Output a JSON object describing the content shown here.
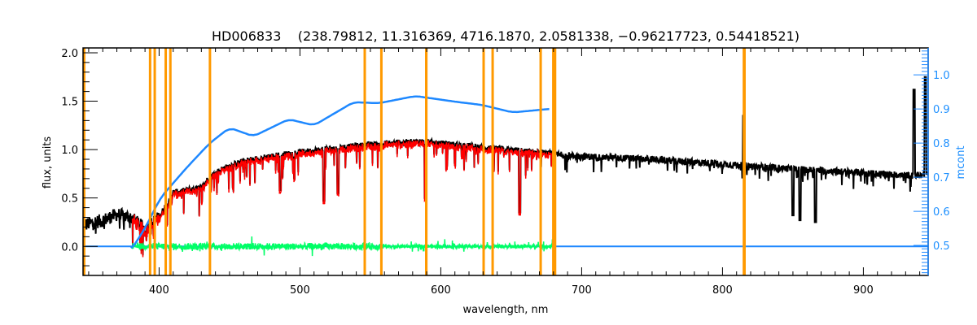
{
  "chart_data": {
    "type": "line",
    "title": "HD006833    (238.79812, 11.316369, 4716.1870, 2.0581338, −0.96217723, 0.54418521)",
    "xlabel": "wavelength, nm",
    "ylabel": "flux, units",
    "y2label": "mcont",
    "xlim": [
      346,
      946
    ],
    "ylim": [
      -0.3,
      2.05
    ],
    "y2lim": [
      0.412,
      1.079
    ],
    "xticks": [
      "400",
      "500",
      "600",
      "700",
      "800",
      "900"
    ],
    "yticks": [
      "0.0",
      "0.5",
      "1.0",
      "1.5",
      "2.0"
    ],
    "y2ticks": [
      "0.5",
      "0.6",
      "0.7",
      "0.8",
      "0.9",
      "1.0"
    ],
    "grid": false,
    "colors": {
      "observed": "#000000",
      "model": "#ff0000",
      "residual": "#00ff66",
      "mcont": "#1e88ff",
      "masks": "#ff9900"
    },
    "series": [
      {
        "name": "observed flux",
        "range": [
          346,
          946
        ],
        "continuum": [
          [
            346,
            0.22
          ],
          [
            360,
            0.27
          ],
          [
            370,
            0.33
          ],
          [
            380,
            0.3
          ],
          [
            390,
            0.18
          ],
          [
            400,
            0.3
          ],
          [
            410,
            0.55
          ],
          [
            420,
            0.58
          ],
          [
            430,
            0.6
          ],
          [
            436,
            0.72
          ],
          [
            445,
            0.8
          ],
          [
            460,
            0.88
          ],
          [
            480,
            0.93
          ],
          [
            500,
            0.97
          ],
          [
            530,
            1.02
          ],
          [
            560,
            1.06
          ],
          [
            585,
            1.08
          ],
          [
            600,
            1.06
          ],
          [
            630,
            1.02
          ],
          [
            660,
            0.98
          ],
          [
            680,
            0.95
          ],
          [
            700,
            0.93
          ],
          [
            750,
            0.9
          ],
          [
            800,
            0.85
          ],
          [
            850,
            0.8
          ],
          [
            900,
            0.76
          ],
          [
            935,
            0.73
          ],
          [
            946,
            0.75
          ]
        ],
        "features": [
          [
            486,
            0.58
          ],
          [
            517,
            0.47
          ],
          [
            527,
            0.55
          ],
          [
            589,
            0.5
          ],
          [
            656,
            0.35
          ],
          [
            815,
            1.35
          ],
          [
            850,
            0.32
          ],
          [
            855,
            0.27
          ],
          [
            866,
            0.25
          ],
          [
            936,
            1.62
          ],
          [
            944,
            1.75
          ]
        ]
      },
      {
        "name": "model flux",
        "range": [
          381,
          680
        ]
      },
      {
        "name": "residual",
        "range": [
          381,
          680
        ]
      },
      {
        "name": "mcont",
        "axis": "right",
        "points": [
          [
            380,
            0.486
          ],
          [
            390,
            0.55
          ],
          [
            401,
            0.64
          ],
          [
            420,
            0.73
          ],
          [
            436,
            0.8
          ],
          [
            450,
            0.845
          ],
          [
            467,
            0.82
          ],
          [
            492,
            0.87
          ],
          [
            510,
            0.852
          ],
          [
            538,
            0.92
          ],
          [
            556,
            0.917
          ],
          [
            582,
            0.938
          ],
          [
            611,
            0.921
          ],
          [
            629,
            0.912
          ],
          [
            651,
            0.89
          ],
          [
            677,
            0.9
          ]
        ]
      }
    ],
    "mask_lines": [
      346.8,
      393.6,
      396.9,
      404.7,
      408.0,
      436.1,
      546.0,
      557.8,
      589.7,
      630.4,
      636.8,
      670.9
    ],
    "mask_bands": [
      [
        588.8,
        590.2
      ],
      [
        679.0,
        682.0
      ],
      [
        814.3,
        816.5
      ]
    ]
  }
}
